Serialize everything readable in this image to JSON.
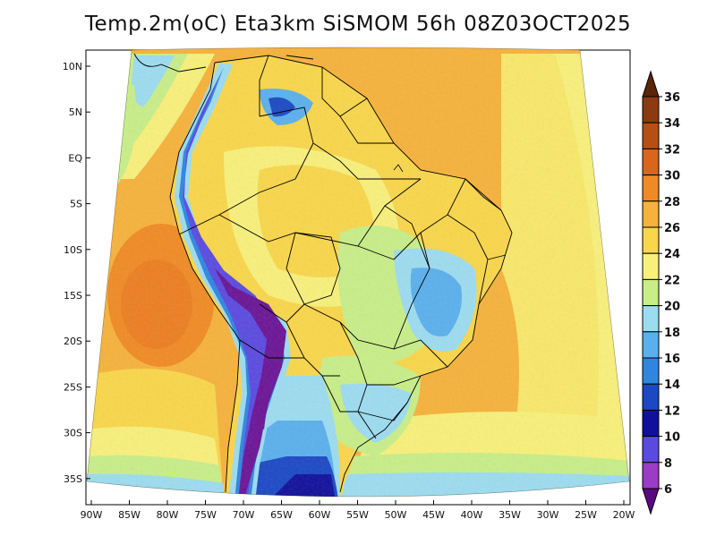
{
  "title": "Temp.2m(oC) Eta3km SiSMOM 56h 08Z03OCT2025",
  "lon_labels": [
    "90W",
    "85W",
    "80W",
    "75W",
    "70W",
    "65W",
    "60W",
    "55W",
    "50W",
    "45W",
    "40W",
    "35W",
    "30W",
    "25W",
    "20W"
  ],
  "lat_labels": [
    "10N",
    "5N",
    "EQ",
    "5S",
    "10S",
    "15S",
    "20S",
    "25S",
    "30S",
    "35S"
  ],
  "colorbar": {
    "labels": [
      "36",
      "34",
      "32",
      "30",
      "28",
      "26",
      "24",
      "22",
      "20",
      "18",
      "16",
      "14",
      "12",
      "10",
      "8",
      "6"
    ],
    "colors": [
      "#6b2d0c",
      "#8c3a10",
      "#b64f14",
      "#d9661b",
      "#f08a24",
      "#f6b23a",
      "#f9d64a",
      "#f8f07a",
      "#c8ee88",
      "#9cdcf0",
      "#5ab0ec",
      "#2f86e0",
      "#1c48c4",
      "#10109c",
      "#5a4ae0",
      "#9a3cc6",
      "#6a1496"
    ],
    "top_color": "#5a2508",
    "bottom_color": "#5a0a80"
  }
}
